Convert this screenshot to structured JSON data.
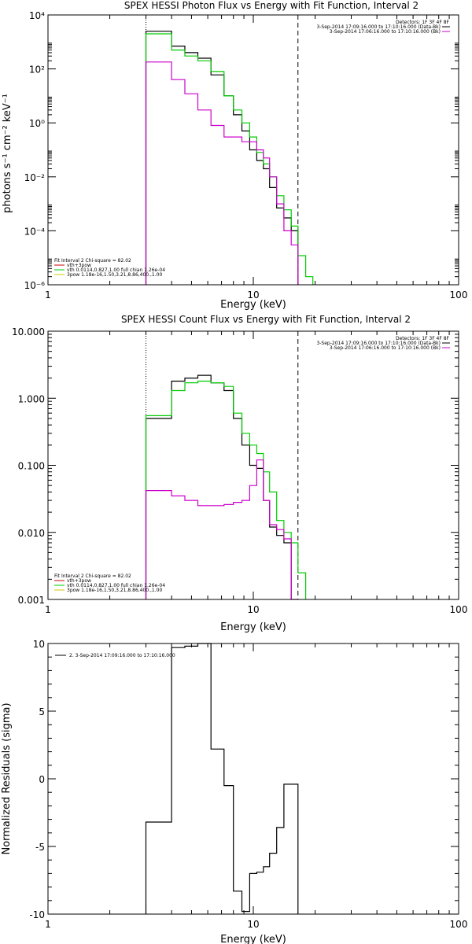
{
  "chart_data": [
    {
      "type": "line",
      "title": "SPEX HESSI Photon Flux vs Energy with Fit Function, Interval 2",
      "xlabel": "Energy (keV)",
      "ylabel": "photons s⁻¹ cm⁻² keV⁻¹",
      "xscale": "log",
      "yscale": "log",
      "xlim": [
        1,
        100
      ],
      "ylim": [
        1e-06,
        10000.0
      ],
      "xticks": [
        {
          "v": 1,
          "label": "1"
        },
        {
          "v": 10,
          "label": "10"
        },
        {
          "v": 100,
          "label": "100"
        }
      ],
      "yticks": [
        {
          "v": 1e-06,
          "label": "10⁻⁶"
        },
        {
          "v": 0.0001,
          "label": "10⁻⁴"
        },
        {
          "v": 0.01,
          "label": "10⁻²"
        },
        {
          "v": 1,
          "label": "10⁰"
        },
        {
          "v": 100,
          "label": "10²"
        },
        {
          "v": 10000,
          "label": "10⁴"
        }
      ],
      "vlines": [
        {
          "x": 3.0,
          "style": "dotted"
        },
        {
          "x": 16.5,
          "style": "dashed"
        }
      ],
      "legend_top_right": [
        "Detectors: 1F 3F 4F 8F",
        "3-Sep-2014 17:09:16.000 to 17:10:16.000 (Data-Bk)",
        "3-Sep-2014 17:06:16.000 to 17:10:16.000 (Bk)"
      ],
      "legend_bottom_left": [
        "Fit Interval 2   Chi-square = 82.02",
        "vth+3pow",
        "vth 0.0114,0.827,1.00  full chian 1.26e-04",
        "3pow 1.18e-16,1.50,3.21,8.86,400.,1.00"
      ],
      "edges": [
        3.0,
        3.46,
        4.0,
        4.64,
        5.37,
        6.22,
        7.2,
        8.0,
        8.8,
        9.6,
        10.4,
        11.2,
        12.0,
        13.0,
        14.1,
        15.3,
        16.5,
        18.0,
        19.5
      ],
      "series": [
        {
          "name": "Data-Bk",
          "color": "#000000",
          "values": [
            2500,
            2500,
            700,
            400,
            250,
            60,
            10,
            2.0,
            0.5,
            0.1,
            0.04,
            0.02,
            0.004,
            0.0007,
            0.0003,
            0.0001,
            null,
            null
          ]
        },
        {
          "name": "vth+3pow",
          "color": "#00cc00",
          "values": [
            2000,
            2000,
            500,
            300,
            200,
            80,
            10,
            3.0,
            1.0,
            0.3,
            0.08,
            0.03,
            0.01,
            0.002,
            0.0006,
            0.00015,
            1.2e-05,
            2e-06
          ]
        },
        {
          "name": "Bk",
          "color": "#cc00cc",
          "values": [
            180,
            180,
            40,
            12,
            3.0,
            0.8,
            0.3,
            0.3,
            0.2,
            0.2,
            0.1,
            0.05,
            0.01,
            0.001,
            0.0001,
            3e-05,
            null,
            null
          ]
        }
      ]
    },
    {
      "type": "line",
      "title": "SPEX HESSI Count Flux vs Energy with Fit Function, Interval 2",
      "xlabel": "Energy (keV)",
      "ylabel": "",
      "xscale": "log",
      "yscale": "log",
      "xlim": [
        1,
        100
      ],
      "ylim": [
        0.001,
        10
      ],
      "xticks": [
        {
          "v": 1,
          "label": "1"
        },
        {
          "v": 10,
          "label": "10"
        },
        {
          "v": 100,
          "label": "100"
        }
      ],
      "yticks": [
        {
          "v": 0.001,
          "label": "0.001"
        },
        {
          "v": 0.01,
          "label": "0.010"
        },
        {
          "v": 0.1,
          "label": "0.100"
        },
        {
          "v": 1,
          "label": "1.000"
        },
        {
          "v": 10,
          "label": "10.000"
        }
      ],
      "vlines": [
        {
          "x": 3.0,
          "style": "dotted"
        },
        {
          "x": 16.5,
          "style": "dashed"
        }
      ],
      "legend_top_right": [
        "Detectors: 1F 3F 4F 8F",
        "3-Sep-2014 17:09:16.000 to 17:10:16.000 (Data-Bk)",
        "3-Sep-2014 17:06:16.000 to 17:10:16.000 (Bk)"
      ],
      "legend_bottom_left": [
        "Fit Interval 2   Chi-square = 82.02",
        "vth+3pow",
        "vth 0.0114,0.827,1.00  full chian 1.26e-04",
        "3pow 1.18e-16,1.50,3.21,8.86,400.,1.00"
      ],
      "edges": [
        3.0,
        3.46,
        4.0,
        4.64,
        5.37,
        6.22,
        7.2,
        8.0,
        8.8,
        9.6,
        10.4,
        11.2,
        12.0,
        13.0,
        14.1,
        15.3,
        16.5,
        18.0,
        19.5
      ],
      "series": [
        {
          "name": "Data-Bk",
          "color": "#000000",
          "values": [
            0.5,
            0.5,
            1.8,
            2.0,
            2.2,
            1.7,
            1.3,
            0.5,
            0.2,
            0.1,
            0.09,
            0.03,
            0.012,
            0.009,
            0.007,
            null,
            null,
            null
          ]
        },
        {
          "name": "vth+3pow",
          "color": "#00cc00",
          "values": [
            0.55,
            0.55,
            1.3,
            1.7,
            1.8,
            1.7,
            1.5,
            0.6,
            0.3,
            0.2,
            0.15,
            0.08,
            0.04,
            0.015,
            0.01,
            0.007,
            0.0025,
            null
          ]
        },
        {
          "name": "Bk",
          "color": "#cc00cc",
          "values": [
            0.042,
            0.042,
            0.035,
            0.03,
            0.025,
            0.025,
            0.026,
            0.028,
            0.03,
            0.05,
            0.12,
            0.03,
            0.013,
            0.011,
            0.008,
            0.001,
            null,
            null
          ]
        }
      ]
    },
    {
      "type": "line",
      "title": "",
      "xlabel": "Energy (keV)",
      "ylabel": "Normalized Residuals (sigma)",
      "xscale": "log",
      "yscale": "linear",
      "xlim": [
        1,
        100
      ],
      "ylim": [
        -10,
        10
      ],
      "xticks": [
        {
          "v": 1,
          "label": "1"
        },
        {
          "v": 10,
          "label": "10"
        },
        {
          "v": 100,
          "label": "100"
        }
      ],
      "yticks": [
        {
          "v": -10,
          "label": "-10"
        },
        {
          "v": -5,
          "label": "-5"
        },
        {
          "v": 0,
          "label": "0"
        },
        {
          "v": 5,
          "label": "5"
        },
        {
          "v": 10,
          "label": "10"
        }
      ],
      "vlines": [],
      "legend_top_left": [
        "2.  3-Sep-2014 17:09:16.000 to 17:10:16.000"
      ],
      "edges": [
        3.0,
        4.0,
        4.64,
        5.37,
        6.22,
        7.2,
        8.0,
        8.8,
        9.6,
        10.4,
        11.2,
        12.0,
        13.0,
        14.1,
        15.3,
        16.5
      ],
      "series": [
        {
          "name": "2.",
          "color": "#000000",
          "values": [
            -3.2,
            9.7,
            9.8,
            10.0,
            2.2,
            -0.5,
            -8.3,
            -9.8,
            -7.0,
            -6.9,
            -6.5,
            -5.5,
            -3.6,
            -0.4,
            -0.4
          ]
        }
      ]
    }
  ]
}
